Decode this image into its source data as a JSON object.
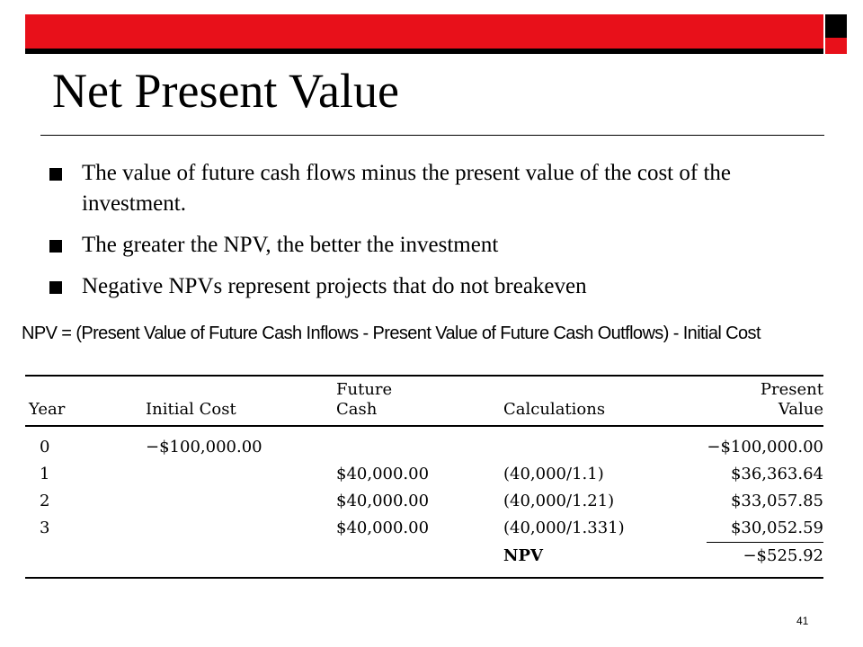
{
  "slide": {
    "title": "Net Present Value",
    "bullets": [
      "The value of future cash flows minus the present value of the cost of the investment.",
      "The greater the NPV, the better the investment",
      "Negative NPVs represent projects that do not breakeven"
    ],
    "formula": "NPV = (Present Value of Future Cash Inflows - Present Value of Future Cash Outflows) - Initial Cost",
    "page_number": "41",
    "accent_color": "#e8101a"
  },
  "table": {
    "headers": {
      "year": "Year",
      "initial_cost": "Initial Cost",
      "future_cash_line1": "Future",
      "future_cash_line2": "Cash",
      "calculations": "Calculations",
      "present_value_line1": "Present",
      "present_value_line2": "Value"
    },
    "rows": [
      {
        "year": "0",
        "initial_cost": "−$100,000.00",
        "future_cash": "",
        "calculations": "",
        "present_value": "−$100,000.00"
      },
      {
        "year": "1",
        "initial_cost": "",
        "future_cash": "$40,000.00",
        "calculations": "(40,000/1.1)",
        "present_value": "$36,363.64"
      },
      {
        "year": "2",
        "initial_cost": "",
        "future_cash": "$40,000.00",
        "calculations": "(40,000/1.21)",
        "present_value": "$33,057.85"
      },
      {
        "year": "3",
        "initial_cost": "",
        "future_cash": "$40,000.00",
        "calculations": "(40,000/1.331)",
        "present_value": "$30,052.59"
      }
    ],
    "npv_label": "NPV",
    "npv_value": "−$525.92"
  }
}
